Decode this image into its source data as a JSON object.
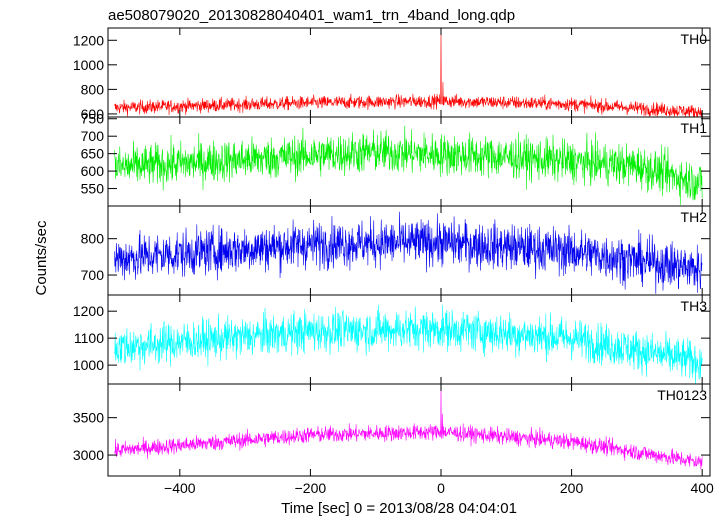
{
  "chart_data": {
    "type": "line",
    "title": "ae508079020_20130828040401_wam1_trn_4band_long.qdp",
    "xlabel": "Time [sec] 0 = 2013/08/28 04:04:01",
    "ylabel": "Counts/sec",
    "xlim": [
      -510,
      412
    ],
    "x_ticks": [
      {
        "value": -400,
        "label": "−400"
      },
      {
        "value": -200,
        "label": "−200"
      },
      {
        "value": 0,
        "label": "0"
      },
      {
        "value": 200,
        "label": "200"
      },
      {
        "value": 400,
        "label": "400"
      }
    ],
    "panels": [
      {
        "name": "TH0",
        "color": "#ff0000",
        "ylim": [
          575,
          1300
        ],
        "ticks": [
          600,
          800,
          1000,
          1200
        ],
        "trend": [
          [
            -500,
            650
          ],
          [
            -200,
            690
          ],
          [
            0,
            705
          ],
          [
            200,
            680
          ],
          [
            400,
            615
          ]
        ],
        "noise": 28,
        "spikes": [
          {
            "x": 0,
            "y": 1290
          },
          {
            "x": 3,
            "y": 860
          }
        ]
      },
      {
        "name": "TH1",
        "color": "#00ee00",
        "ylim": [
          500,
          755
        ],
        "ticks": [
          550,
          600,
          650,
          700,
          750
        ],
        "trend": [
          [
            -500,
            610
          ],
          [
            -200,
            645
          ],
          [
            -100,
            655
          ],
          [
            100,
            640
          ],
          [
            300,
            615
          ],
          [
            400,
            565
          ]
        ],
        "noise": 30,
        "spikes": []
      },
      {
        "name": "TH2",
        "color": "#0000ee",
        "ylim": [
          645,
          890
        ],
        "ticks": [
          700,
          800
        ],
        "trend": [
          [
            -500,
            745
          ],
          [
            -200,
            785
          ],
          [
            0,
            790
          ],
          [
            200,
            765
          ],
          [
            400,
            715
          ]
        ],
        "noise": 32,
        "spikes": []
      },
      {
        "name": "TH3",
        "color": "#00ffff",
        "ylim": [
          930,
          1260
        ],
        "ticks": [
          1000,
          1100,
          1200
        ],
        "trend": [
          [
            -500,
            1065
          ],
          [
            -200,
            1125
          ],
          [
            0,
            1135
          ],
          [
            200,
            1100
          ],
          [
            400,
            1010
          ]
        ],
        "noise": 38,
        "spikes": []
      },
      {
        "name": "TH0123",
        "color": "#ff00ff",
        "ylim": [
          2720,
          3950
        ],
        "ticks": [
          3000,
          3500
        ],
        "trend": [
          [
            -500,
            3060
          ],
          [
            -200,
            3270
          ],
          [
            0,
            3310
          ],
          [
            200,
            3180
          ],
          [
            400,
            2900
          ]
        ],
        "noise": 55,
        "spikes": [
          {
            "x": 0,
            "y": 3930
          },
          {
            "x": 2,
            "y": 3550
          }
        ]
      }
    ]
  }
}
